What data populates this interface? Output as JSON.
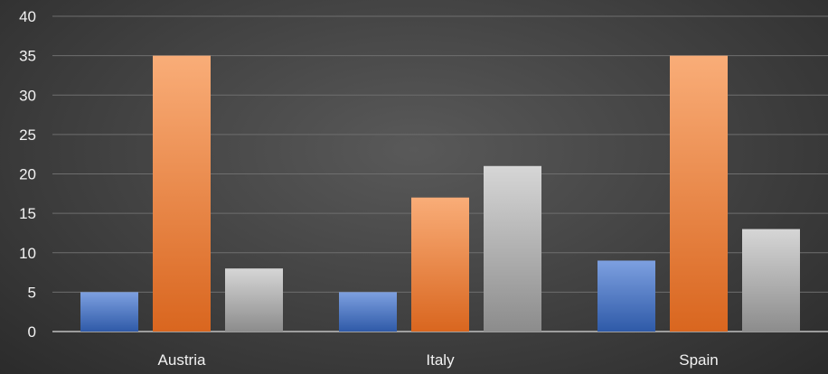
{
  "chart_data": {
    "type": "bar",
    "categories": [
      "Austria",
      "Italy",
      "Spain"
    ],
    "series": [
      {
        "values": [
          5,
          5,
          9
        ],
        "color": "#4472c4"
      },
      {
        "values": [
          35,
          17,
          35
        ],
        "color": "#ed7d31"
      },
      {
        "values": [
          8,
          21,
          13
        ],
        "color": "#a5a5a5"
      }
    ],
    "yticks": [
      0,
      5,
      10,
      15,
      20,
      25,
      30,
      35,
      40
    ],
    "ylim": [
      0,
      40
    ],
    "grid": true,
    "legend": "none",
    "title": "",
    "xlabel": "",
    "ylabel": ""
  }
}
